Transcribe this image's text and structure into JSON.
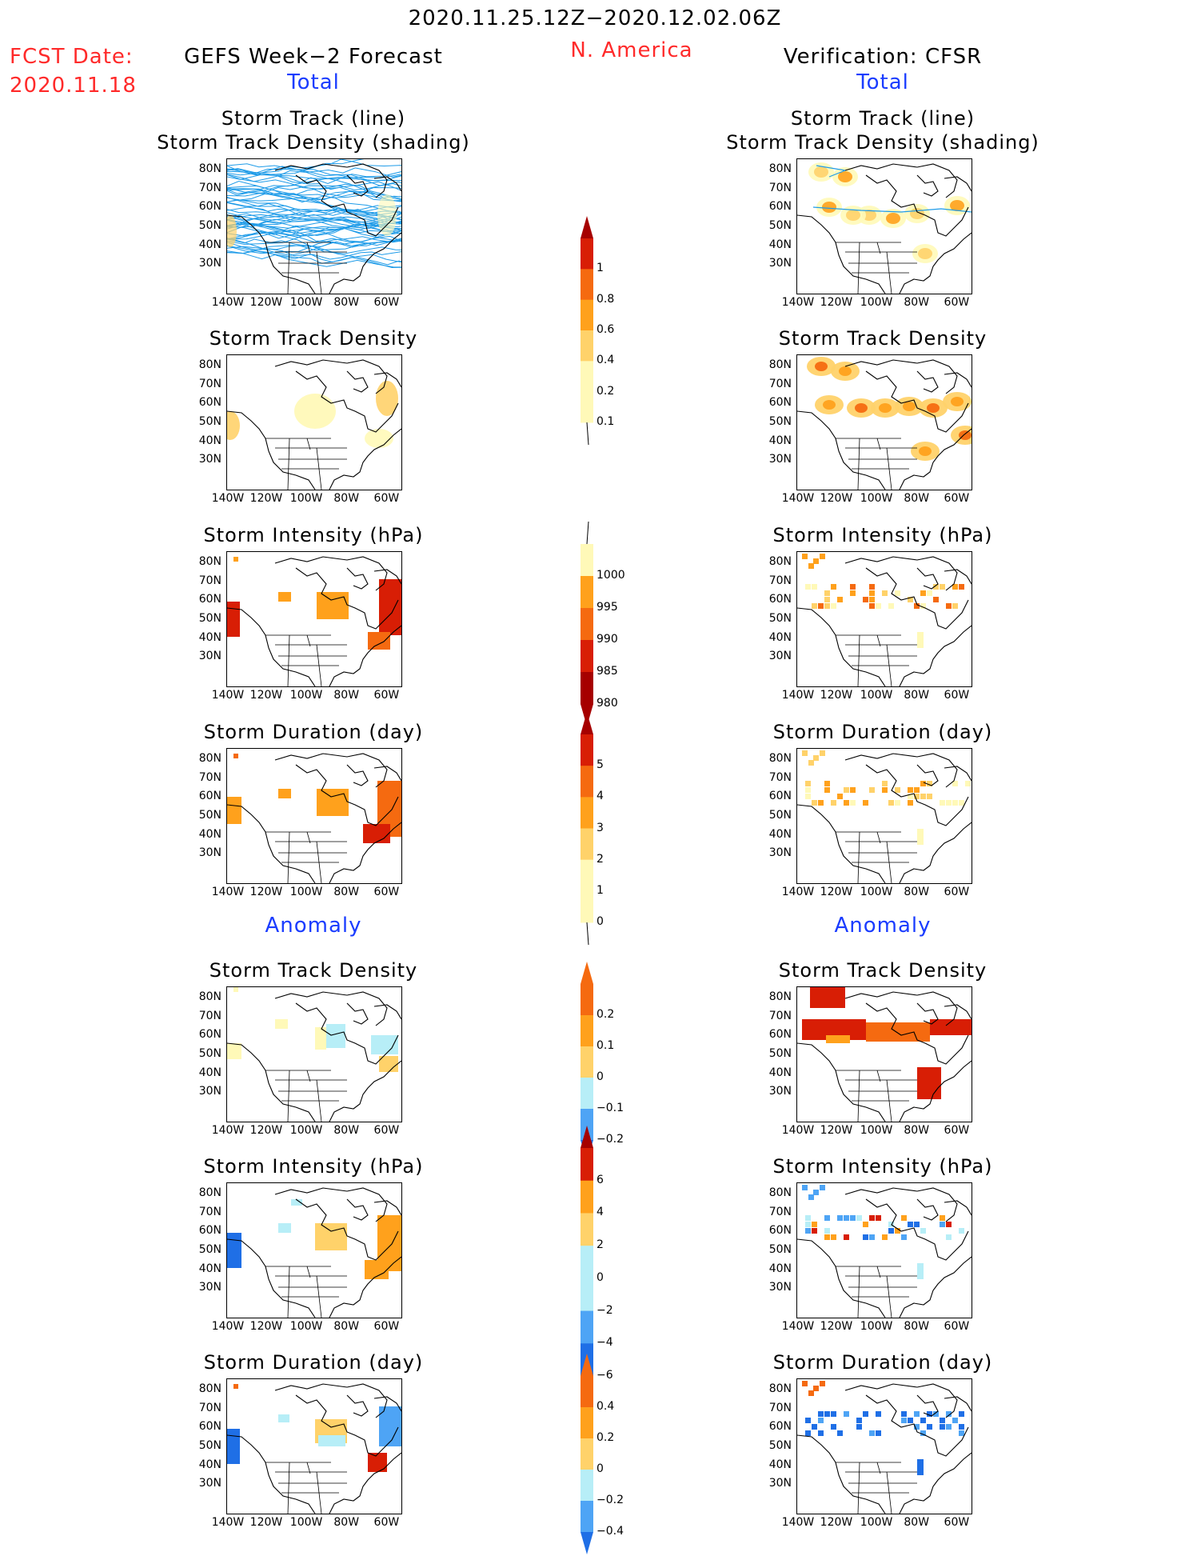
{
  "header": {
    "date_range": "2020.11.25.12Z−2020.12.02.06Z",
    "region": "N. America",
    "fcst_label": "FCST Date:",
    "fcst_date": "2020.11.18",
    "left_title": "GEFS Week−2 Forecast",
    "right_title": "Verification: CFSR",
    "total_left": "Total",
    "total_right": "Total",
    "anomaly_left": "Anomaly",
    "anomaly_right": "Anomaly"
  },
  "panel_titles": {
    "track_line": "Storm Track (line)",
    "track_shading": "Storm Track Density (shading)",
    "density": "Storm Track Density",
    "intensity": "Storm Intensity (hPa)",
    "duration": "Storm Duration (day)"
  },
  "axes": {
    "lat_ticks": [
      "80N",
      "70N",
      "60N",
      "50N",
      "40N",
      "30N"
    ],
    "lon_ticks": [
      "140W",
      "120W",
      "100W",
      "80W",
      "60W"
    ]
  },
  "colors": {
    "cb_pale": "#fff9b8",
    "cb_light_orange": "#ffd26a",
    "cb_orange": "#ffa11c",
    "cb_dark_orange": "#f56a10",
    "cb_red": "#d81e05",
    "cb_dark_red": "#a60000",
    "cb_light_blue": "#b7eef7",
    "cb_mid_blue": "#4ea4f5",
    "cb_blue": "#1f6fe6",
    "track_line": "#1e9be8",
    "coastline": "#000000"
  },
  "chart_data": [
    {
      "type": "heatmap",
      "title": "Storm Track (line) / Storm Track Density (shading)",
      "column": "GEFS Week-2 Forecast",
      "section": "Total"
    },
    {
      "type": "heatmap",
      "title": "Storm Track Density",
      "column": "GEFS Week-2 Forecast",
      "section": "Total",
      "colorbar": [
        0.1,
        0.2,
        0.4,
        0.6,
        0.8,
        1
      ]
    },
    {
      "type": "heatmap",
      "title": "Storm Intensity (hPa)",
      "column": "GEFS Week-2 Forecast",
      "section": "Total",
      "colorbar": [
        1000,
        995,
        990,
        985,
        980
      ]
    },
    {
      "type": "heatmap",
      "title": "Storm Duration (day)",
      "column": "GEFS Week-2 Forecast",
      "section": "Total",
      "colorbar": [
        0,
        1,
        2,
        3,
        4,
        5
      ]
    },
    {
      "type": "heatmap",
      "title": "Storm Track Density",
      "column": "GEFS Week-2 Forecast",
      "section": "Anomaly",
      "colorbar": [
        -0.2,
        -0.1,
        0,
        0.1,
        0.2
      ]
    },
    {
      "type": "heatmap",
      "title": "Storm Intensity (hPa)",
      "column": "GEFS Week-2 Forecast",
      "section": "Anomaly",
      "colorbar": [
        -6,
        -4,
        -2,
        0,
        2,
        4,
        6
      ]
    },
    {
      "type": "heatmap",
      "title": "Storm Duration (day)",
      "column": "GEFS Week-2 Forecast",
      "section": "Anomaly",
      "colorbar": [
        -0.4,
        -0.2,
        0,
        0.2,
        0.4
      ]
    },
    {
      "type": "heatmap",
      "title": "Storm Track (line) / Storm Track Density (shading)",
      "column": "Verification: CFSR",
      "section": "Total"
    },
    {
      "type": "heatmap",
      "title": "Storm Track Density",
      "column": "Verification: CFSR",
      "section": "Total"
    },
    {
      "type": "heatmap",
      "title": "Storm Intensity (hPa)",
      "column": "Verification: CFSR",
      "section": "Total"
    },
    {
      "type": "heatmap",
      "title": "Storm Duration (day)",
      "column": "Verification: CFSR",
      "section": "Total"
    },
    {
      "type": "heatmap",
      "title": "Storm Track Density",
      "column": "Verification: CFSR",
      "section": "Anomaly"
    },
    {
      "type": "heatmap",
      "title": "Storm Intensity (hPa)",
      "column": "Verification: CFSR",
      "section": "Anomaly"
    },
    {
      "type": "heatmap",
      "title": "Storm Duration (day)",
      "column": "Verification: CFSR",
      "section": "Anomaly"
    }
  ],
  "colorbars": {
    "total_density": {
      "labels": [
        "1",
        "0.8",
        "0.6",
        "0.4",
        "0.2",
        "0.1"
      ]
    },
    "total_intensity": {
      "labels": [
        "1000",
        "995",
        "990",
        "985",
        "980"
      ]
    },
    "total_duration": {
      "labels": [
        "5",
        "4",
        "3",
        "2",
        "1",
        "0"
      ]
    },
    "anom_density": {
      "labels": [
        "0.2",
        "0.1",
        "0",
        "−0.1",
        "−0.2"
      ]
    },
    "anom_intensity": {
      "labels": [
        "6",
        "4",
        "2",
        "0",
        "−2",
        "−4",
        "−6"
      ]
    },
    "anom_duration": {
      "labels": [
        "0.4",
        "0.2",
        "0",
        "−0.2",
        "−0.4"
      ]
    }
  }
}
